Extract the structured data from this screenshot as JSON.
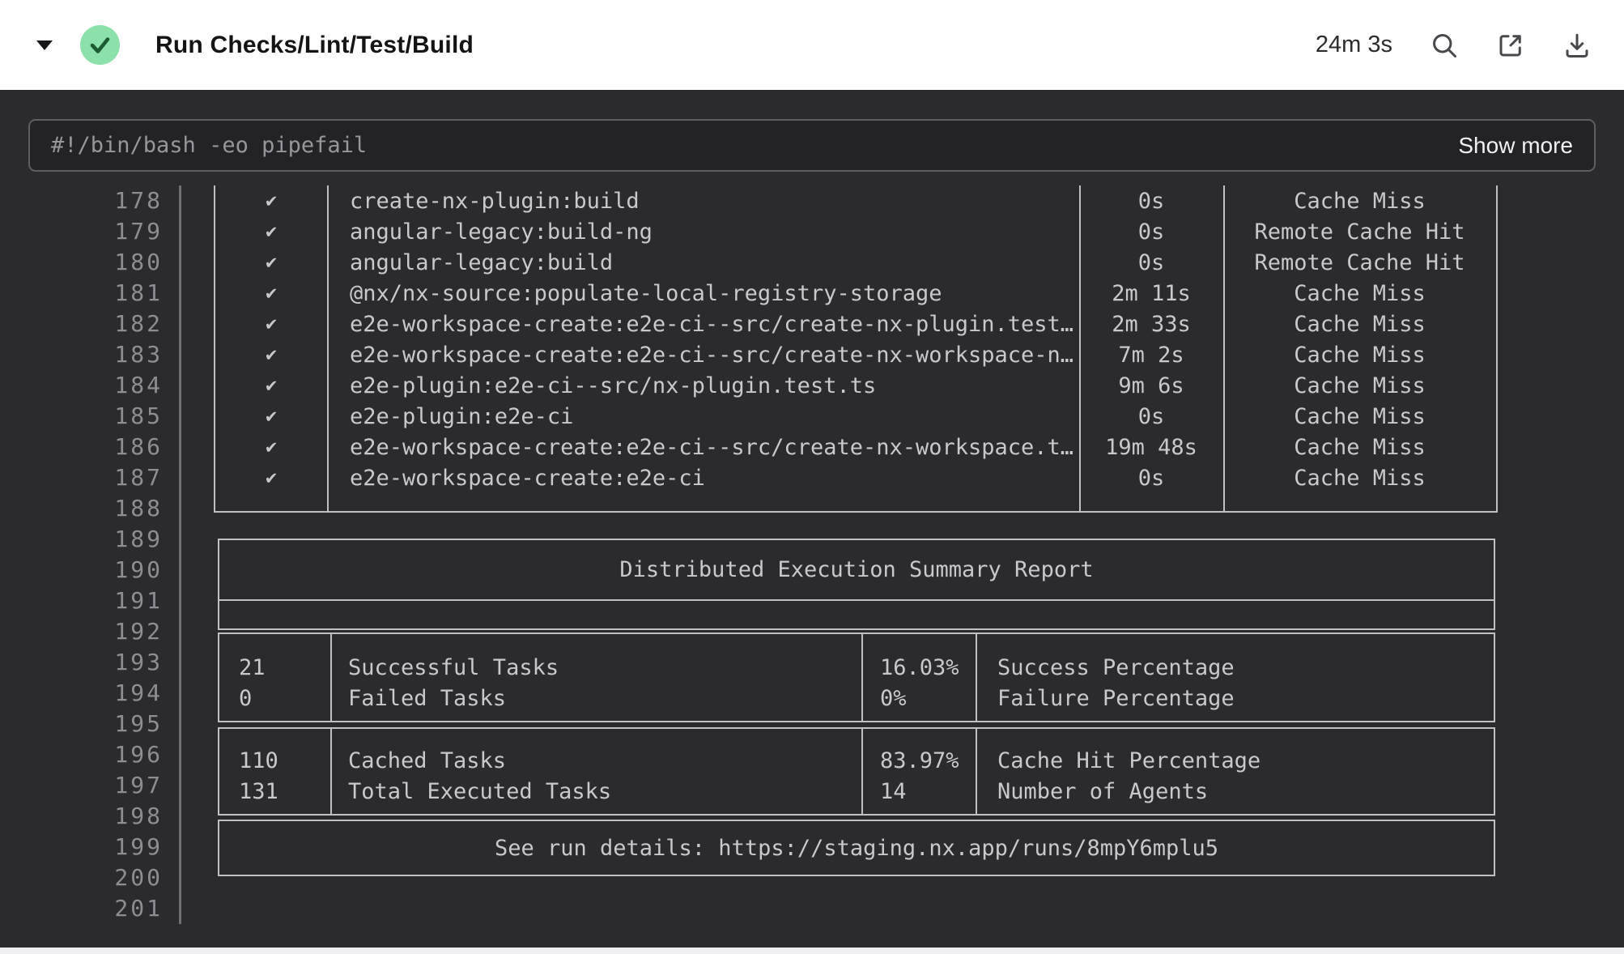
{
  "header": {
    "title": "Run Checks/Lint/Test/Build",
    "duration": "24m 3s",
    "status": "success",
    "icons": [
      "caret-down-icon",
      "check-circle-icon",
      "search-icon",
      "open-external-icon",
      "download-icon"
    ]
  },
  "command_bar": {
    "command": "#!/bin/bash -eo pipefail",
    "show_more_label": "Show more"
  },
  "log": {
    "line_numbers": [
      "178",
      "179",
      "180",
      "181",
      "182",
      "183",
      "184",
      "185",
      "186",
      "187",
      "188",
      "189",
      "190",
      "191",
      "192",
      "193",
      "194",
      "195",
      "196",
      "197",
      "198",
      "199",
      "200",
      "201"
    ]
  },
  "task_table": {
    "rows": [
      {
        "status": "✔",
        "task": "create-nx-plugin:build",
        "time": "0s",
        "cache": "Cache Miss"
      },
      {
        "status": "✔",
        "task": "angular-legacy:build-ng",
        "time": "0s",
        "cache": "Remote Cache Hit"
      },
      {
        "status": "✔",
        "task": "angular-legacy:build",
        "time": "0s",
        "cache": "Remote Cache Hit"
      },
      {
        "status": "✔",
        "task": "@nx/nx-source:populate-local-registry-storage",
        "time": "2m 11s",
        "cache": "Cache Miss"
      },
      {
        "status": "✔",
        "task": "e2e-workspace-create:e2e-ci--src/create-nx-plugin.test…",
        "time": "2m 33s",
        "cache": "Cache Miss"
      },
      {
        "status": "✔",
        "task": "e2e-workspace-create:e2e-ci--src/create-nx-workspace-n…",
        "time": "7m 2s",
        "cache": "Cache Miss"
      },
      {
        "status": "✔",
        "task": "e2e-plugin:e2e-ci--src/nx-plugin.test.ts",
        "time": "9m 6s",
        "cache": "Cache Miss"
      },
      {
        "status": "✔",
        "task": "e2e-plugin:e2e-ci",
        "time": "0s",
        "cache": "Cache Miss"
      },
      {
        "status": "✔",
        "task": "e2e-workspace-create:e2e-ci--src/create-nx-workspace.t…",
        "time": "19m 48s",
        "cache": "Cache Miss"
      },
      {
        "status": "✔",
        "task": "e2e-workspace-create:e2e-ci",
        "time": "0s",
        "cache": "Cache Miss"
      }
    ]
  },
  "summary": {
    "title": "Distributed Execution Summary Report",
    "stats_group1": [
      {
        "value": "21",
        "label": "Successful Tasks",
        "pct": "16.03%",
        "pct_label": "Success Percentage"
      },
      {
        "value": "0",
        "label": "Failed Tasks",
        "pct": "0%",
        "pct_label": "Failure Percentage"
      }
    ],
    "stats_group2": [
      {
        "value": "110",
        "label": "Cached Tasks",
        "pct": "83.97%",
        "pct_label": "Cache Hit Percentage"
      },
      {
        "value": "131",
        "label": "Total Executed Tasks",
        "pct": "14",
        "pct_label": "Number of Agents"
      }
    ],
    "run_details": "See run details: https://staging.nx.app/runs/8mpY6mplu5"
  },
  "colors": {
    "accent_green": "#8CE0AA",
    "check_dark": "#1D5B33",
    "panel_bg": "#2B2A2E",
    "cmdbar_bg": "#232227",
    "cmdbar_border": "#5D5D62",
    "cmd_text": "#97979B",
    "log_text": "#C9C9CB",
    "line_number": "#8D8D92",
    "box_border": "#C0C0C3",
    "gutter_border": "#6F6F74",
    "icon_gray": "#48484C",
    "bottom_strip": "#EFEEF2"
  }
}
